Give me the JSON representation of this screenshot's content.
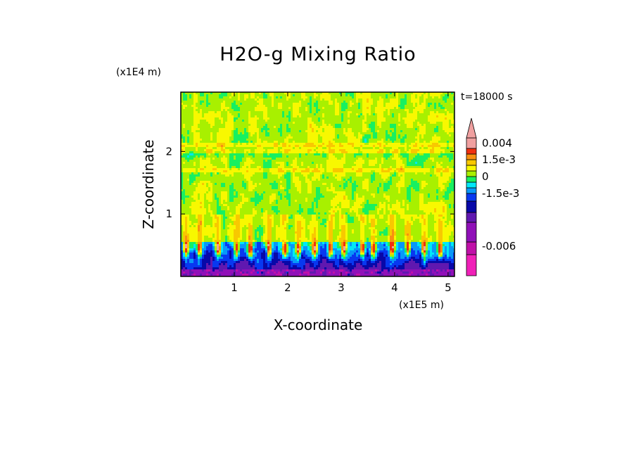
{
  "chart_data": {
    "type": "heatmap",
    "title": "H2O-g Mixing Ratio",
    "xlabel": "X-coordinate",
    "ylabel": "Z-coordinate",
    "x_scale_label": "(x1E5 m)",
    "y_scale_label": "(x1E4 m)",
    "time_label": "t=18000 s",
    "xlim": [
      0,
      5.12
    ],
    "ylim": [
      0,
      2.95
    ],
    "x_ticks": [
      {
        "value": 1,
        "label": "1"
      },
      {
        "value": 2,
        "label": "2"
      },
      {
        "value": 3,
        "label": "3"
      },
      {
        "value": 4,
        "label": "4"
      },
      {
        "value": 5,
        "label": "5"
      }
    ],
    "y_ticks": [
      {
        "value": 1,
        "label": "1"
      },
      {
        "value": 2,
        "label": "2"
      }
    ],
    "colorbar": {
      "levels": [
        {
          "upper": -0.007,
          "color": "#f020b8"
        },
        {
          "upper": -0.0055,
          "color": "#c010a8"
        },
        {
          "upper": -0.0035,
          "color": "#9010b8"
        },
        {
          "upper": -0.0025,
          "color": "#6018b0"
        },
        {
          "upper": -0.002,
          "color": "#0808a8"
        },
        {
          "upper": -0.0015,
          "color": "#0838f0"
        },
        {
          "upper": -0.001,
          "color": "#0898f8"
        },
        {
          "upper": -0.0005,
          "color": "#00e8f8"
        },
        {
          "upper": 0.0,
          "color": "#18f060"
        },
        {
          "upper": 0.0005,
          "color": "#a8f000"
        },
        {
          "upper": 0.001,
          "color": "#f8f800"
        },
        {
          "upper": 0.0015,
          "color": "#f8c800"
        },
        {
          "upper": 0.002,
          "color": "#f89010"
        },
        {
          "upper": 0.003,
          "color": "#f03010"
        },
        {
          "upper": 0.005,
          "color": "#f0a0a0"
        }
      ],
      "top_triangle_color": "#f0a0a0",
      "tick_labels": [
        {
          "value": 0.004,
          "label": "0.004"
        },
        {
          "value": 0.0015,
          "label": "1.5e-3"
        },
        {
          "value": 0.0,
          "label": "0"
        },
        {
          "value": -0.0015,
          "label": "-1.5e-3"
        },
        {
          "value": -0.006,
          "label": "-0.006"
        }
      ]
    },
    "field_description_values": {
      "upper_mean": 0.0003,
      "band_altitudes": [
        1.7,
        2.0,
        2.1
      ],
      "plume_centers": [
        0.1,
        0.35,
        0.7,
        1.05,
        1.3,
        1.65,
        1.95,
        2.2,
        2.5,
        2.8,
        3.05,
        3.4,
        3.6,
        3.95,
        4.25,
        4.55,
        4.85
      ]
    }
  }
}
